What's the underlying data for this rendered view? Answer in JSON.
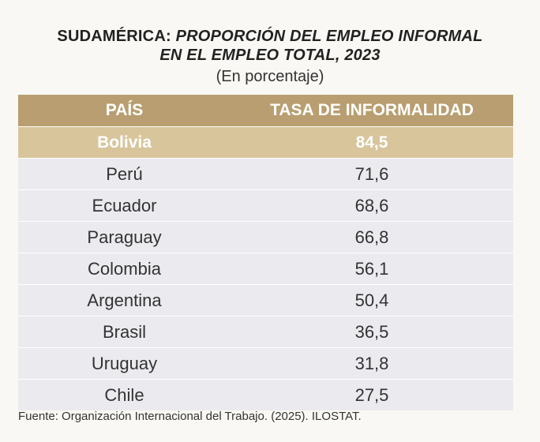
{
  "chart_data": {
    "type": "table",
    "title_part1": "SUDAMÉRICA: ",
    "title_part2": "PROPORCIÓN DEL EMPLEO INFORMAL",
    "title_line2": "EN EL EMPLEO TOTAL, 2023",
    "subtitle": "(En porcentaje)",
    "columns": [
      "PAÍS",
      "TASA DE INFORMALIDAD"
    ],
    "highlight_color": "#d8c59c",
    "header_color": "#b89e70",
    "rows": [
      {
        "country": "Bolivia",
        "value": "84,5",
        "highlighted": true
      },
      {
        "country": "Perú",
        "value": "71,6"
      },
      {
        "country": "Ecuador",
        "value": "68,6"
      },
      {
        "country": "Paraguay",
        "value": "66,8"
      },
      {
        "country": "Colombia",
        "value": "56,1"
      },
      {
        "country": "Argentina",
        "value": "50,4"
      },
      {
        "country": "Brasil",
        "value": "36,5"
      },
      {
        "country": "Uruguay",
        "value": "31,8"
      },
      {
        "country": "Chile",
        "value": "27,5"
      }
    ],
    "source": "Fuente: Organización Internacional del Trabajo. (2025). ILOSTAT."
  }
}
